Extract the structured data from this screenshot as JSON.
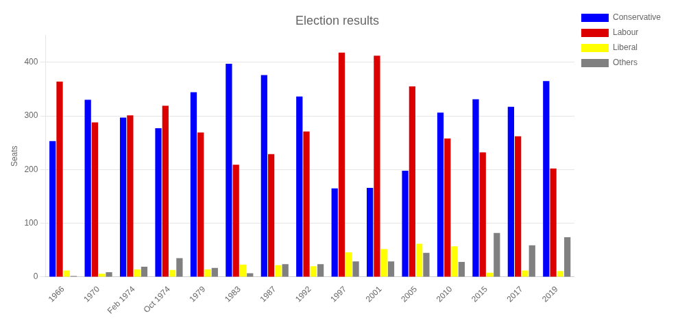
{
  "chart_data": {
    "type": "bar",
    "title": "Election results",
    "ylabel": "Seats",
    "categories": [
      "1966",
      "1970",
      "Feb 1974",
      "Oct 1974",
      "1979",
      "1983",
      "1987",
      "1992",
      "1997",
      "2001",
      "2005",
      "2010",
      "2015",
      "2017",
      "2019"
    ],
    "series": [
      {
        "name": "Conservative",
        "color": "#0000ff",
        "values": [
          253,
          330,
          297,
          277,
          344,
          397,
          376,
          336,
          165,
          166,
          198,
          306,
          331,
          317,
          365
        ]
      },
      {
        "name": "Labour",
        "color": "#dd0000",
        "values": [
          364,
          288,
          301,
          319,
          269,
          209,
          229,
          271,
          418,
          412,
          355,
          258,
          232,
          262,
          202
        ]
      },
      {
        "name": "Liberal",
        "color": "#ffff00",
        "values": [
          12,
          6,
          14,
          13,
          14,
          23,
          22,
          20,
          46,
          52,
          62,
          57,
          8,
          12,
          11
        ]
      },
      {
        "name": "Others",
        "color": "#808080",
        "values": [
          2,
          9,
          19,
          35,
          17,
          7,
          24,
          24,
          29,
          29,
          45,
          28,
          82,
          59,
          74
        ]
      }
    ],
    "ylim": [
      0,
      450
    ],
    "yticks": [
      0,
      100,
      200,
      300,
      400
    ],
    "grid": true,
    "legend": "upper right"
  }
}
